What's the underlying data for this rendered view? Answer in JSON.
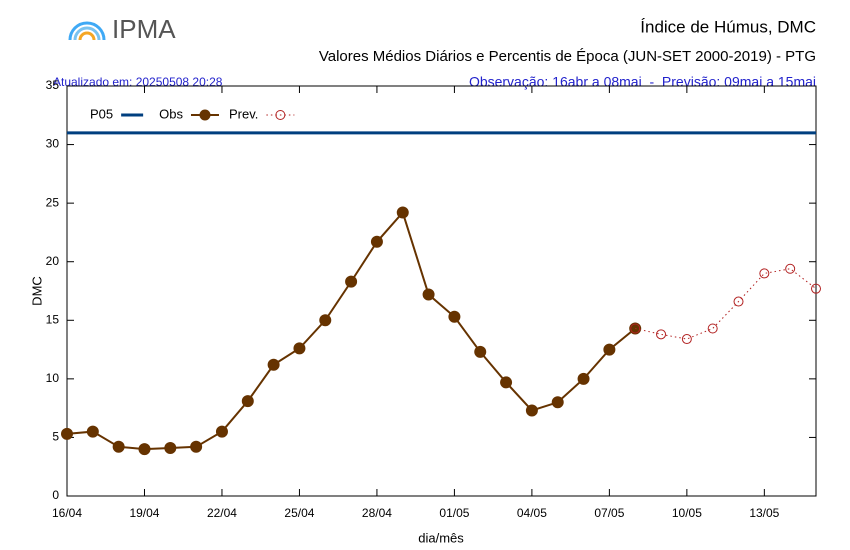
{
  "logo": "IPMA",
  "chart_data": {
    "type": "line",
    "title": "Índice de Húmus, DMC",
    "subtitle": "Valores Médios Diários e Percentis de Época (JUN-SET 2000-2019) - PTG",
    "updated": "Atualizado em: 20250508 20:28",
    "period": "Observação: 16abr a 08mai  -  Previsão: 09mai a 15mai",
    "y_label": "DMC",
    "x_label": "dia/mês",
    "categories": [
      "16/04",
      null,
      null,
      "19/04",
      null,
      null,
      "22/04",
      null,
      null,
      "25/04",
      null,
      null,
      "28/04",
      null,
      null,
      "01/05",
      null,
      null,
      "04/05",
      null,
      null,
      "07/05",
      null,
      null,
      "10/05",
      null,
      null,
      "13/05",
      null,
      null
    ],
    "series": [
      {
        "name": "P05",
        "color": "#003f7f",
        "style": "line",
        "values": [
          31,
          31,
          31,
          31,
          31,
          31,
          31,
          31,
          31,
          31,
          31,
          31,
          31,
          31,
          31,
          31,
          31,
          31,
          31,
          31,
          31,
          31,
          31,
          31,
          31,
          31,
          31,
          31,
          31,
          31
        ]
      },
      {
        "name": "Obs",
        "color": "#663300",
        "style": "filled",
        "values": [
          5.3,
          5.5,
          4.2,
          4.0,
          4.1,
          4.2,
          5.5,
          8.1,
          11.2,
          12.6,
          15.0,
          18.3,
          21.7,
          24.2,
          17.2,
          15.3,
          12.3,
          9.7,
          7.3,
          8.0,
          10.0,
          12.5,
          14.3,
          null,
          null,
          null,
          null,
          null,
          null,
          null
        ]
      },
      {
        "name": "Prev.",
        "color": "#b22222",
        "style": "open",
        "values": [
          null,
          null,
          null,
          null,
          null,
          null,
          null,
          null,
          null,
          null,
          null,
          null,
          null,
          null,
          null,
          null,
          null,
          null,
          null,
          null,
          null,
          null,
          14.3,
          13.8,
          13.4,
          14.3,
          16.6,
          19.0,
          19.4,
          17.7
        ]
      }
    ],
    "ylim": [
      0,
      35
    ],
    "yticks": [
      0,
      5,
      10,
      15,
      20,
      25,
      30,
      35
    ],
    "grid": false
  }
}
